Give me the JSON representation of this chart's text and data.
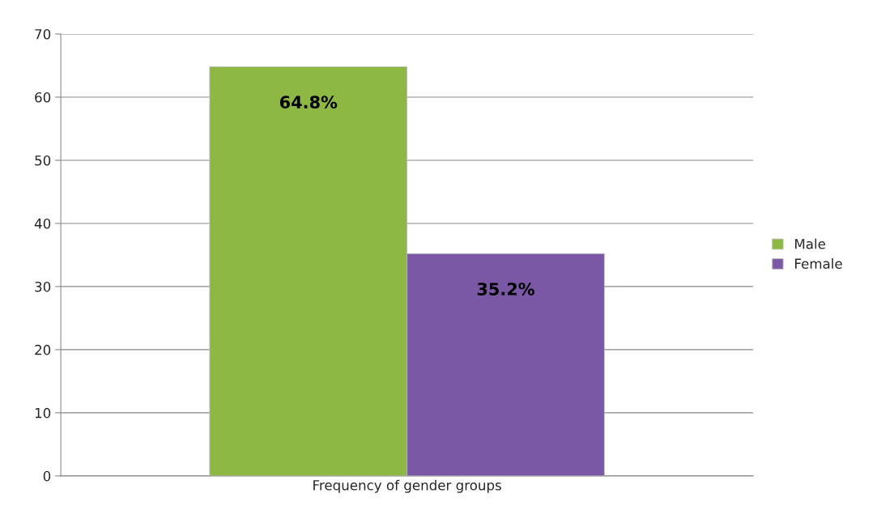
{
  "chart_data": {
    "type": "bar",
    "categories": [
      "Frequency of gender groups"
    ],
    "series": [
      {
        "name": "Male",
        "color": "#8db843",
        "values": [
          64.8
        ],
        "value_labels": [
          "64.8%"
        ]
      },
      {
        "name": "Female",
        "color": "#7b58a6",
        "values": [
          35.2
        ],
        "value_labels": [
          "35.2%"
        ]
      }
    ],
    "ylim": [
      0,
      70
    ],
    "yticks": [
      0,
      10,
      20,
      30,
      40,
      50,
      60,
      70
    ],
    "grid": "y",
    "legend": "right"
  }
}
